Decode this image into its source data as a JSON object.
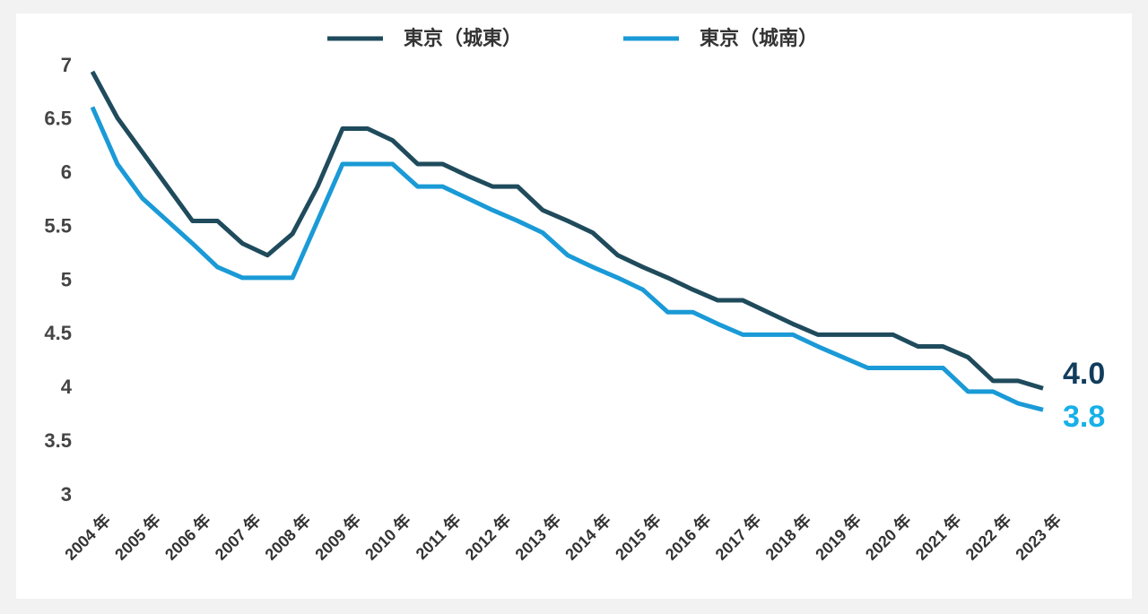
{
  "chart_data": {
    "type": "line",
    "categories": [
      "2004 年",
      null,
      "2005 年",
      null,
      "2006 年",
      null,
      "2007 年",
      null,
      "2008 年",
      null,
      "2009 年",
      null,
      "2010 年",
      null,
      "2011 年",
      null,
      "2012 年",
      null,
      "2013 年",
      null,
      "2014 年",
      null,
      "2015 年",
      null,
      "2016 年",
      null,
      "2017 年",
      null,
      "2018 年",
      null,
      "2019 年",
      null,
      "2020 年",
      null,
      "2021 年",
      null,
      "2022 年",
      null,
      "2023 年"
    ],
    "series": [
      {
        "name": "東京（城東）",
        "color": "#1f4b5c",
        "values": [
          6.95,
          6.52,
          6.2,
          5.88,
          5.56,
          5.56,
          5.35,
          5.24,
          5.44,
          5.88,
          6.42,
          6.42,
          6.31,
          6.09,
          6.09,
          5.98,
          5.88,
          5.88,
          5.66,
          5.56,
          5.45,
          5.24,
          5.13,
          5.03,
          4.92,
          4.82,
          4.82,
          4.71,
          4.6,
          4.5,
          4.5,
          4.5,
          4.5,
          4.39,
          4.39,
          4.29,
          4.07,
          4.07,
          4.0
        ],
        "value_labels": [
          null,
          null,
          null,
          null,
          null,
          null,
          null,
          null,
          null,
          null,
          null,
          null,
          null,
          null,
          null,
          null,
          null,
          null,
          null,
          null,
          null,
          null,
          null,
          null,
          null,
          null,
          null,
          null,
          null,
          null,
          null,
          null,
          null,
          null,
          null,
          null,
          null,
          null,
          "4.0"
        ],
        "label_color": "#123d5c"
      },
      {
        "name": "東京（城南）",
        "color": "#1a9ad6",
        "values": [
          6.62,
          6.09,
          5.77,
          5.56,
          5.35,
          5.13,
          5.03,
          5.03,
          5.03,
          5.56,
          6.09,
          6.09,
          6.09,
          5.88,
          5.88,
          5.77,
          5.66,
          5.56,
          5.45,
          5.24,
          5.13,
          5.03,
          4.92,
          4.71,
          4.71,
          4.6,
          4.5,
          4.5,
          4.5,
          4.39,
          4.29,
          4.19,
          4.19,
          4.19,
          4.19,
          3.97,
          3.97,
          3.86,
          3.8
        ],
        "value_labels": [
          null,
          null,
          null,
          null,
          null,
          null,
          null,
          null,
          null,
          null,
          null,
          null,
          null,
          null,
          null,
          null,
          null,
          null,
          null,
          null,
          null,
          null,
          null,
          null,
          null,
          null,
          null,
          null,
          null,
          null,
          null,
          null,
          null,
          null,
          null,
          null,
          null,
          null,
          "3.8"
        ],
        "label_color": "#17b0e8"
      }
    ],
    "ylim": [
      3,
      7
    ],
    "yticks": [
      3,
      3.5,
      4,
      4.5,
      5,
      5.5,
      6,
      6.5,
      7
    ],
    "grid": false,
    "legend": "top"
  }
}
